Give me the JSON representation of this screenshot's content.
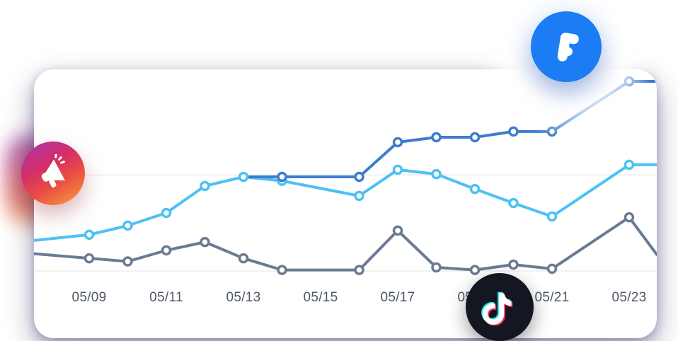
{
  "icons": {
    "instagram": {
      "glyph": "megaphone-icon",
      "gradient": [
        "#a936ae",
        "#d42e68",
        "#ea4c43",
        "#f58c3e"
      ]
    },
    "facebook": {
      "letter": "F",
      "color": "#1b7cf4"
    },
    "tiktok": {
      "glyph": "tiktok-note-icon",
      "color": "#141622",
      "accent_cyan": "#25f4ee",
      "accent_pink": "#fe2c55"
    }
  },
  "chart_data": {
    "type": "line",
    "title": "",
    "xlabel": "",
    "ylabel": "",
    "categories": [
      "05/09",
      "05/11",
      "05/13",
      "05/15",
      "05/17",
      "05/19",
      "05/21",
      "05/23"
    ],
    "x_range_days": [
      9,
      23
    ],
    "y_axis_labels_visible": false,
    "value_scale": "relative-0-100-estimated-no-y-axis-shown",
    "grid_on": true,
    "gridline_values": [
      51,
      2.5
    ],
    "grid_color": "#ededef",
    "label_color": "#4d5765",
    "legend": "none",
    "line_width": 4,
    "marker_style": {
      "radius": 5.5,
      "stroke_width": 3.5,
      "fill": "#ffffff"
    },
    "series": [
      {
        "name": "slate-gray",
        "color": "#6a7b92",
        "points": [
          [
            7.57,
            11.2,
            0
          ],
          [
            9,
            8.9,
            1
          ],
          [
            10,
            7.3,
            1
          ],
          [
            11,
            12.9,
            1
          ],
          [
            12,
            17.1,
            1
          ],
          [
            13,
            8.9,
            1
          ],
          [
            14,
            3,
            1
          ],
          [
            16,
            3,
            1
          ],
          [
            17,
            22.9,
            1
          ],
          [
            18,
            4.3,
            1
          ],
          [
            19,
            3,
            1
          ],
          [
            20,
            5.7,
            1
          ],
          [
            21,
            3.6,
            1
          ],
          [
            23,
            29.6,
            1
          ],
          [
            23.72,
            10.7,
            0
          ]
        ]
      },
      {
        "name": "light-blue",
        "color": "#4ec1f4",
        "points": [
          [
            7.57,
            17.9,
            0
          ],
          [
            9,
            20.8,
            1
          ],
          [
            10,
            25.4,
            1
          ],
          [
            11,
            31.8,
            1
          ],
          [
            12,
            45.4,
            1
          ],
          [
            13,
            50,
            1
          ],
          [
            14,
            48,
            1
          ],
          [
            16,
            40.4,
            1
          ],
          [
            17,
            53.6,
            1
          ],
          [
            18,
            51.4,
            1
          ],
          [
            19,
            43.9,
            1
          ],
          [
            20,
            36.8,
            1
          ],
          [
            21,
            30,
            1
          ],
          [
            23,
            56.1,
            1
          ],
          [
            23.72,
            56.1,
            0
          ]
        ]
      },
      {
        "name": "dark-blue",
        "color": "#3e7ccd",
        "points": [
          [
            13,
            50,
            0
          ],
          [
            14,
            50,
            1
          ],
          [
            16,
            50,
            1
          ],
          [
            17,
            67.5,
            1
          ],
          [
            18,
            70,
            1
          ],
          [
            19,
            70,
            1
          ],
          [
            20,
            72.9,
            1
          ],
          [
            21,
            72.9,
            1
          ],
          [
            23,
            98.2,
            1
          ],
          [
            23.72,
            98.2,
            0
          ]
        ]
      }
    ]
  }
}
